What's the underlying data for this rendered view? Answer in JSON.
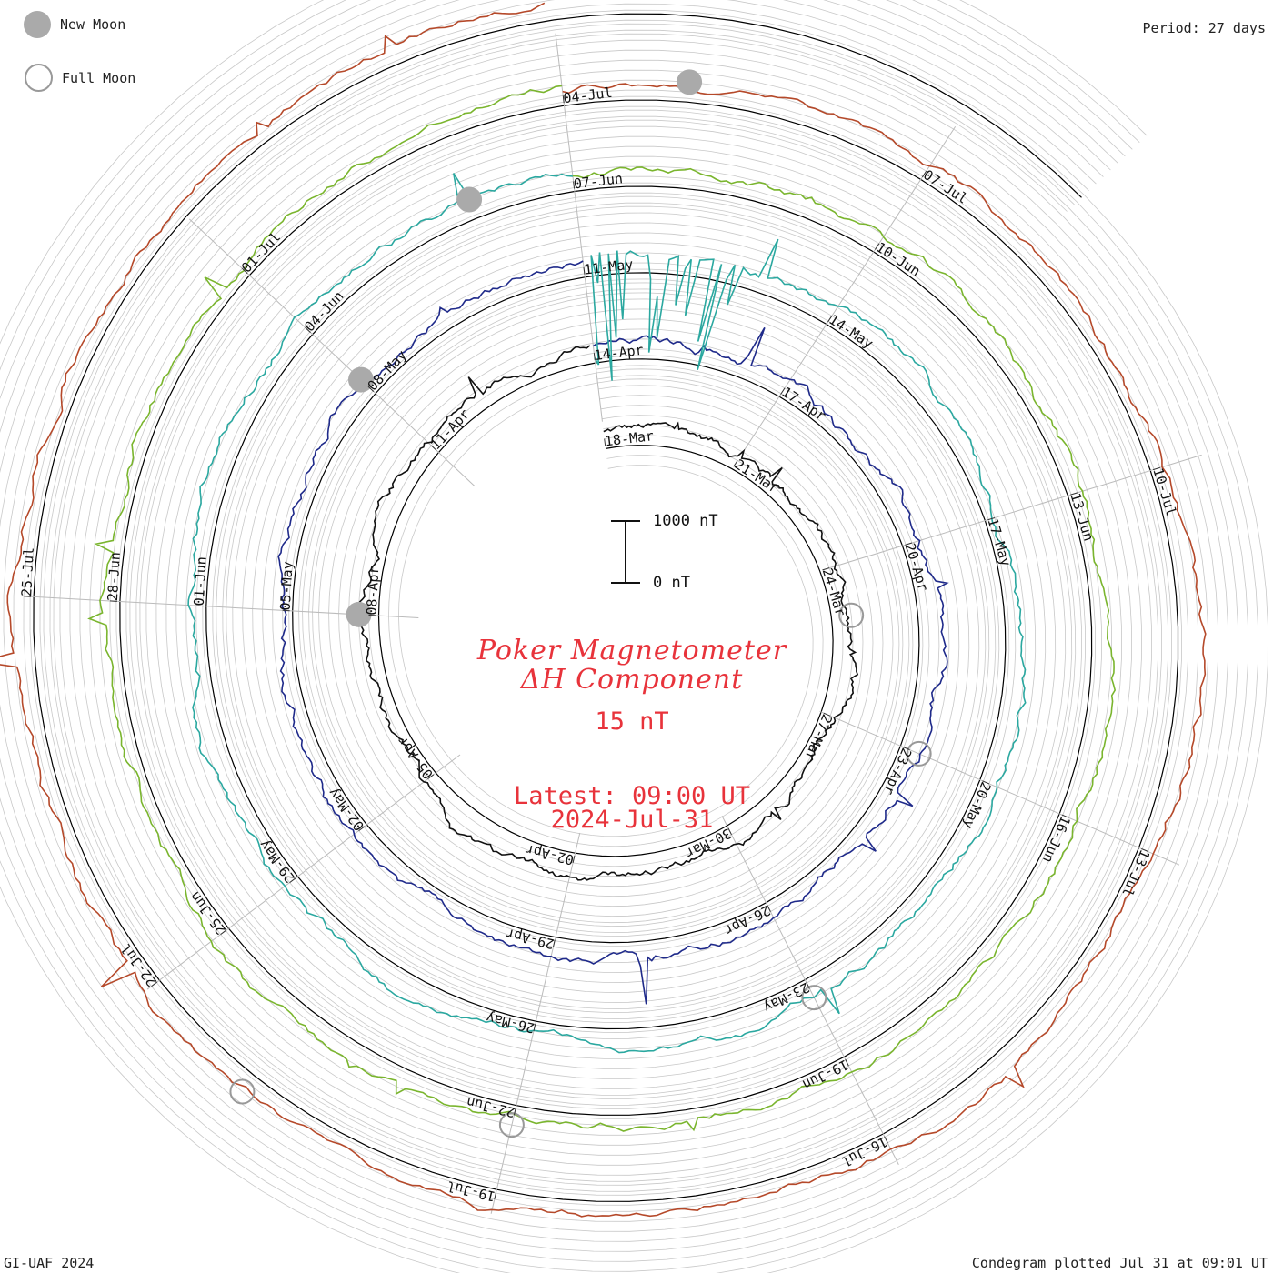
{
  "header": {
    "new_moon_label": "New Moon",
    "full_moon_label": "Full Moon",
    "period": "Period: 27 days"
  },
  "footer": {
    "left": "GI-UAF 2024",
    "right": "Condegram plotted Jul 31 at 09:01 UT"
  },
  "title": {
    "line1": "Poker Magnetometer",
    "line2": "ΔH Component",
    "baseline": "15 nT",
    "latest": "Latest: 09:00 UT",
    "date": "2024-Jul-31"
  },
  "scale": {
    "top_label": "1000 nT",
    "bottom_label": "0 nT"
  },
  "colors": {
    "ring_grid": "#c8c8c8",
    "ring_base": "#000000",
    "title": "#e8333b",
    "moon_new": "#aaaaaa",
    "moon_full": "#999999"
  },
  "chart_data": {
    "type": "condegram",
    "period_days": 27,
    "start_date": "2024-03-18",
    "end_date": "2024-07-31",
    "rotations": [
      {
        "name": "",
        "color": "#111111",
        "dates": [
          "18-Mar",
          "21-Mar",
          "24-Mar",
          "27-Mar",
          "30-Mar",
          "02-Apr",
          "05-Apr",
          "08-Apr",
          "11-Apr"
        ]
      },
      {
        "name": "",
        "color": "#1f2a8a",
        "dates": [
          "14-Apr",
          "17-Apr",
          "20-Apr",
          "23-Apr",
          "26-Apr",
          "29-Apr",
          "02-May",
          "05-May",
          "08-May"
        ]
      },
      {
        "name": "",
        "color": "#2ba8a0",
        "dates": [
          "11-May",
          "14-May",
          "17-May",
          "20-May",
          "23-May",
          "26-May",
          "29-May",
          "01-Jun",
          "04-Jun"
        ]
      },
      {
        "name": "",
        "color": "#7ab52e",
        "dates": [
          "07-Jun",
          "10-Jun",
          "13-Jun",
          "16-Jun",
          "19-Jun",
          "22-Jun",
          "25-Jun",
          "28-Jun",
          "01-Jul"
        ]
      },
      {
        "name": "",
        "color": "#b5492a",
        "dates": [
          "04-Jul",
          "07-Jul",
          "10-Jul",
          "13-Jul",
          "16-Jul",
          "19-Jul",
          "22-Jul",
          "25-Jul"
        ]
      }
    ],
    "new_moon_dates": [
      "08-Apr",
      "08-May",
      "06-Jun",
      "05-Jul"
    ],
    "full_moon_dates": [
      "25-Mar",
      "23-Apr",
      "23-May",
      "22-Jun",
      "21-Jul"
    ],
    "y_unit": "nT"
  }
}
